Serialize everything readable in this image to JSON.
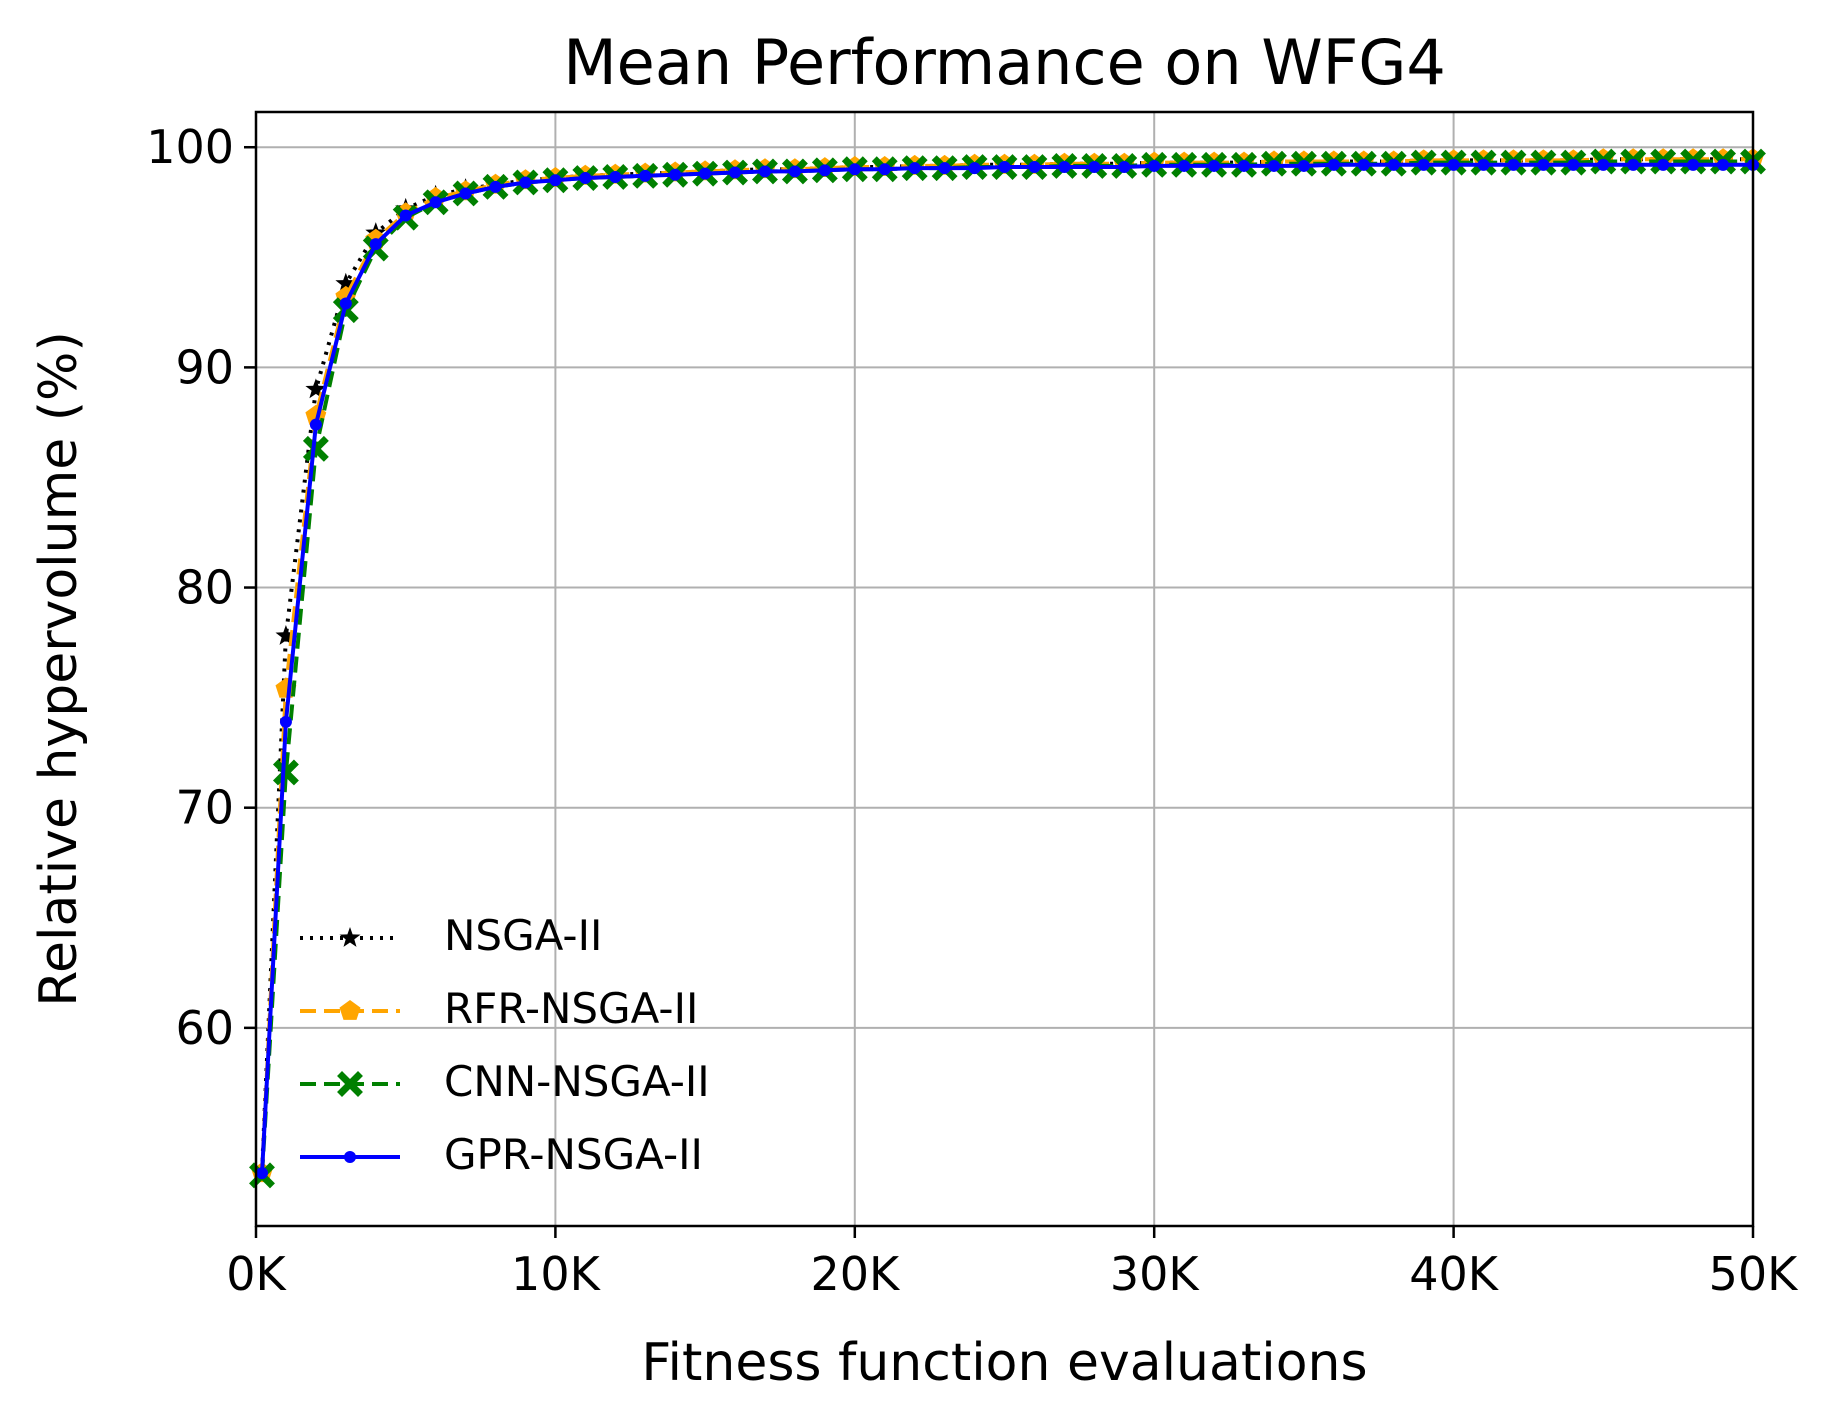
{
  "chart_data": {
    "type": "line",
    "title": "Mean Performance on WFG4",
    "xlabel": "Fitness function evaluations",
    "ylabel": "Relative hypervolume (%)",
    "xlim": [
      0,
      50000
    ],
    "ylim": [
      51,
      101.6
    ],
    "x_ticks": [
      0,
      10000,
      20000,
      30000,
      40000,
      50000
    ],
    "x_tick_labels": [
      "0K",
      "10K",
      "20K",
      "30K",
      "40K",
      "50K"
    ],
    "y_ticks": [
      60,
      70,
      80,
      90,
      100
    ],
    "y_tick_labels": [
      "60",
      "70",
      "80",
      "90",
      "100"
    ],
    "grid": true,
    "legend_position": "lower-left",
    "x": [
      200,
      1000,
      2000,
      3000,
      4000,
      5000,
      6000,
      7000,
      8000,
      9000,
      10000,
      11000,
      12000,
      13000,
      14000,
      15000,
      16000,
      17000,
      18000,
      19000,
      20000,
      21000,
      22000,
      23000,
      24000,
      25000,
      26000,
      27000,
      28000,
      29000,
      30000,
      31000,
      32000,
      33000,
      34000,
      35000,
      36000,
      37000,
      38000,
      39000,
      40000,
      41000,
      42000,
      43000,
      44000,
      45000,
      46000,
      47000,
      48000,
      49000,
      50000
    ],
    "series": [
      {
        "name": "NSGA-II",
        "color": "#000000",
        "line_style": "dotted",
        "marker": "star",
        "values": [
          53.5,
          77.8,
          89.0,
          93.8,
          96.1,
          97.2,
          97.8,
          98.1,
          98.3,
          98.5,
          98.6,
          98.7,
          98.75,
          98.8,
          98.85,
          98.9,
          98.95,
          99.0,
          99.0,
          99.05,
          99.1,
          99.1,
          99.15,
          99.15,
          99.2,
          99.2,
          99.2,
          99.25,
          99.25,
          99.25,
          99.3,
          99.3,
          99.3,
          99.3,
          99.35,
          99.35,
          99.35,
          99.35,
          99.35,
          99.4,
          99.4,
          99.4,
          99.4,
          99.4,
          99.4,
          99.45,
          99.45,
          99.45,
          99.45,
          99.45,
          99.45
        ]
      },
      {
        "name": "RFR-NSGA-II",
        "color": "#ffa500",
        "line_style": "dashed",
        "marker": "pentagon",
        "values": [
          53.4,
          75.4,
          87.8,
          93.2,
          95.8,
          97.0,
          97.7,
          98.0,
          98.3,
          98.5,
          98.6,
          98.7,
          98.75,
          98.8,
          98.85,
          98.9,
          98.95,
          99.0,
          99.0,
          99.05,
          99.1,
          99.1,
          99.15,
          99.15,
          99.2,
          99.2,
          99.2,
          99.25,
          99.25,
          99.25,
          99.3,
          99.3,
          99.3,
          99.3,
          99.35,
          99.35,
          99.35,
          99.35,
          99.35,
          99.4,
          99.4,
          99.4,
          99.4,
          99.4,
          99.4,
          99.45,
          99.45,
          99.45,
          99.45,
          99.45,
          99.45
        ]
      },
      {
        "name": "CNN-NSGA-II",
        "color": "#008000",
        "line_style": "dashed",
        "marker": "x",
        "values": [
          53.3,
          71.6,
          86.3,
          92.6,
          95.4,
          96.8,
          97.5,
          97.9,
          98.2,
          98.4,
          98.5,
          98.6,
          98.65,
          98.7,
          98.75,
          98.8,
          98.85,
          98.9,
          98.9,
          98.95,
          99.0,
          99.0,
          99.05,
          99.05,
          99.1,
          99.1,
          99.1,
          99.15,
          99.15,
          99.15,
          99.2,
          99.2,
          99.2,
          99.2,
          99.25,
          99.25,
          99.25,
          99.25,
          99.25,
          99.3,
          99.3,
          99.3,
          99.3,
          99.3,
          99.3,
          99.35,
          99.35,
          99.35,
          99.35,
          99.35,
          99.35
        ]
      },
      {
        "name": "GPR-NSGA-II",
        "color": "#0000ff",
        "line_style": "solid",
        "marker": "dot",
        "values": [
          53.4,
          73.9,
          87.4,
          92.9,
          95.6,
          96.9,
          97.5,
          97.9,
          98.2,
          98.4,
          98.5,
          98.6,
          98.65,
          98.7,
          98.75,
          98.8,
          98.85,
          98.9,
          98.9,
          98.95,
          99.0,
          99.0,
          99.05,
          99.05,
          99.05,
          99.1,
          99.1,
          99.1,
          99.1,
          99.1,
          99.15,
          99.15,
          99.15,
          99.15,
          99.15,
          99.15,
          99.2,
          99.2,
          99.2,
          99.2,
          99.2,
          99.2,
          99.2,
          99.2,
          99.2,
          99.2,
          99.2,
          99.2,
          99.2,
          99.2,
          99.2
        ]
      }
    ]
  }
}
